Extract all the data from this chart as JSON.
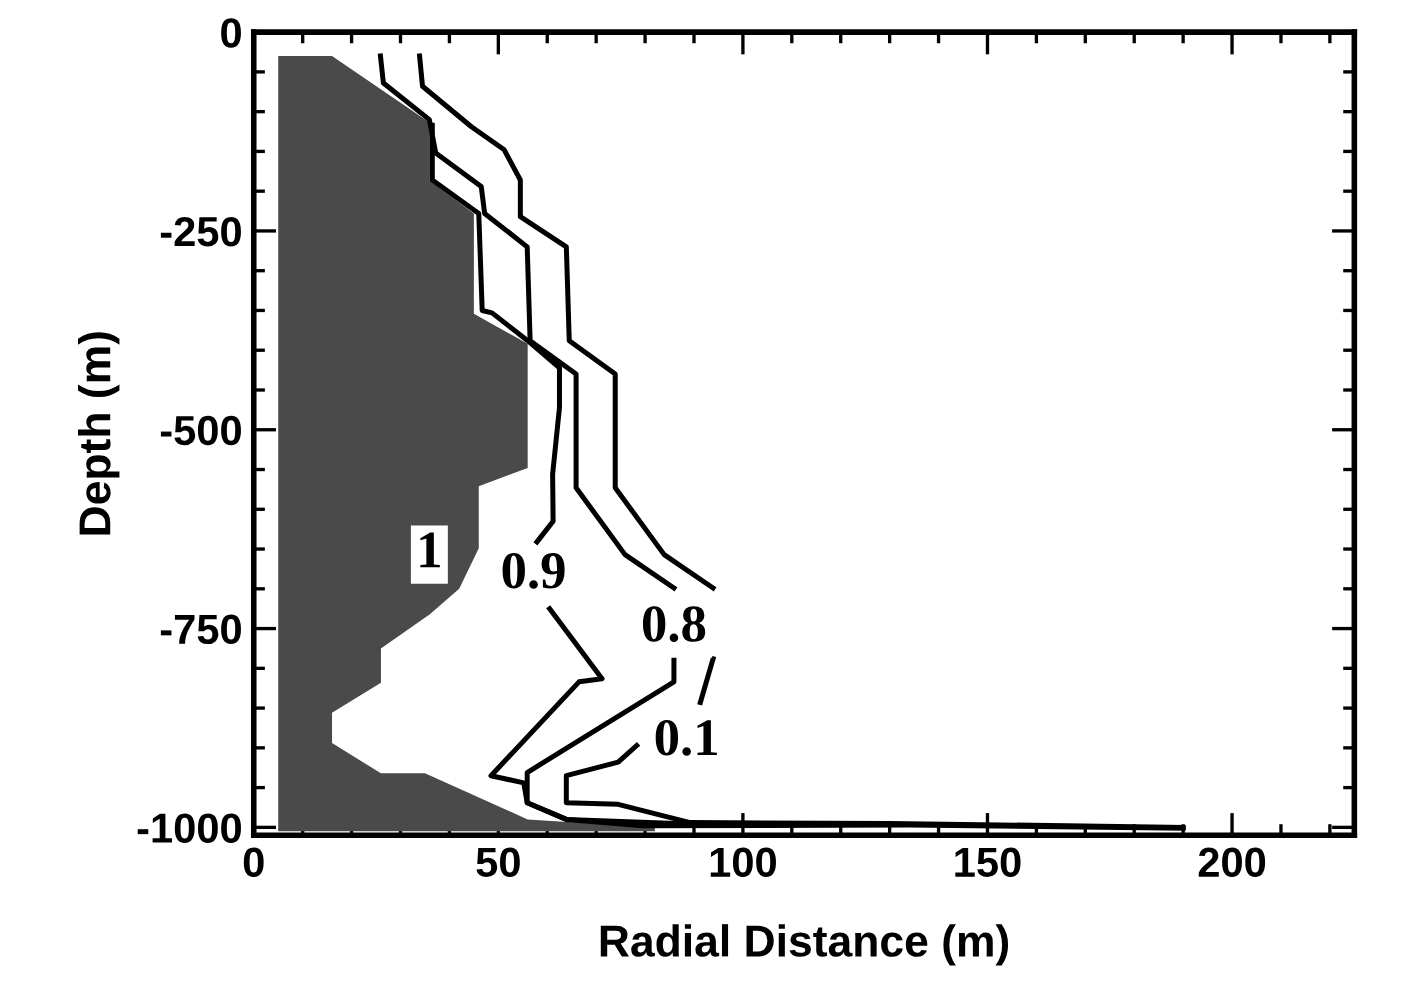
{
  "chart_data": {
    "type": "line",
    "xlabel": "Radial Distance (m)",
    "ylabel": "Depth (m)",
    "xlim": [
      0,
      225
    ],
    "xticks": [
      0,
      50,
      100,
      150,
      200
    ],
    "ylim": [
      -1010,
      0
    ],
    "yticks": [
      -1000,
      -750,
      -500,
      -250,
      0
    ],
    "grid": false,
    "legend": false,
    "marker": "none",
    "line_style": "solid",
    "series": [
      {
        "type": "area",
        "color": "#4a4a4a",
        "x": [
          5,
          16,
          36,
          36,
          45,
          45,
          56,
          56,
          46,
          46,
          42,
          36,
          26,
          26,
          16,
          16,
          26,
          35,
          56,
          82,
          82,
          5
        ],
        "values": [
          -30,
          -30,
          -114,
          -187,
          -228,
          -354,
          -392,
          -548,
          -571,
          -649,
          -700,
          -732,
          -775,
          -818,
          -856,
          -894,
          -932,
          -932,
          -990,
          -1000,
          -1005,
          -1005
        ]
      },
      {
        "color": "#000000",
        "x": [
          36.5,
          36.5,
          46,
          46.7,
          48.7,
          56,
          62.5,
          62.5,
          61.1,
          61.2,
          57.9,
          null,
          60.5,
          71.2,
          66.5,
          48.5,
          55.2,
          55.9,
          63.9,
          90
        ],
        "values": [
          -117,
          -186,
          -228,
          -350,
          -353,
          -388,
          -422,
          -472,
          -556,
          -615,
          -641,
          null,
          -725,
          -813,
          -817,
          -935,
          -944,
          -969,
          -990,
          -996
        ]
      },
      {
        "color": "#000000",
        "x": [
          25.9,
          26.5,
          35.9,
          37.2,
          46.5,
          47.2,
          55.9,
          56.5,
          65.9,
          65.9,
          75.9,
          85.9,
          null,
          85.9,
          85.9,
          55.9,
          55.9,
          63.9,
          79.5,
          134,
          190
        ],
        "values": [
          -30,
          -64,
          -110,
          -152,
          -194,
          -228,
          -270,
          -388,
          -430,
          -573,
          -657,
          -699,
          null,
          -788,
          -817,
          -931,
          -969,
          -990,
          -998,
          -997,
          -1001
        ]
      },
      {
        "color": "#000000",
        "x": [
          33.9,
          34.5,
          44.5,
          51.2,
          54.5,
          54.5,
          63.9,
          64.5,
          73.9,
          73.9,
          83.9,
          93.9,
          null,
          93.9,
          91.3,
          null,
          78.3,
          74.5,
          63.9,
          63.9,
          74.5,
          89.2,
          130,
          190
        ],
        "values": [
          -30,
          -68,
          -119,
          -148,
          -186,
          -232,
          -270,
          -388,
          -430,
          -573,
          -657,
          -699,
          null,
          -788,
          -843,
          null,
          -897,
          -918,
          -935,
          -969,
          -971,
          -994,
          -995,
          -1000
        ]
      }
    ],
    "annotations": [
      {
        "text": "1",
        "x": 35.9,
        "y": -657
      },
      {
        "text": "0.9",
        "x": 57.2,
        "y": -683
      },
      {
        "text": "0.8",
        "x": 85.9,
        "y": -750
      },
      {
        "text": "0.1",
        "x": 88.5,
        "y": -893
      }
    ]
  }
}
